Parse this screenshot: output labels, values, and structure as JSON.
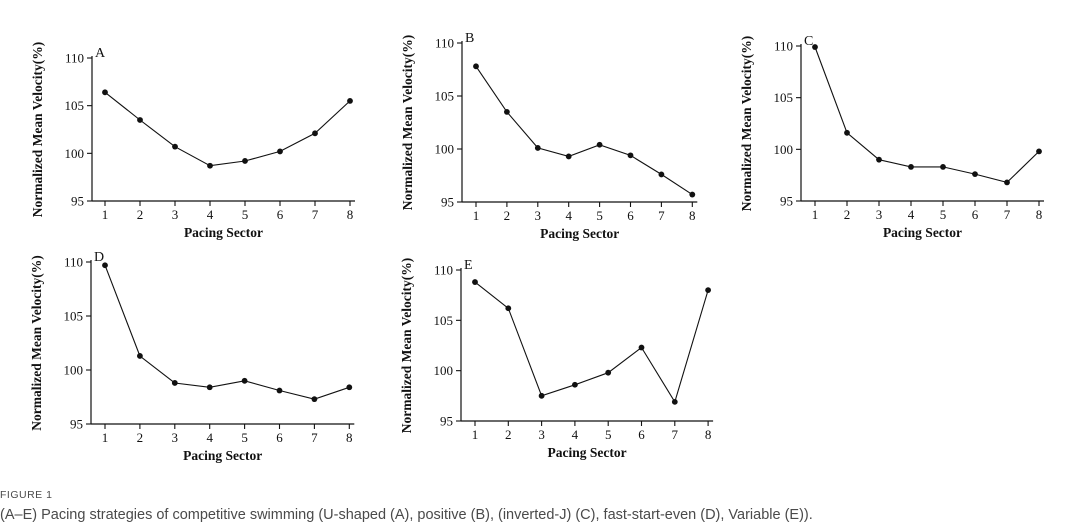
{
  "figure": {
    "label": "FIGURE 1",
    "caption": "(A–E) Pacing strategies of competitive swimming (U-shaped (A), positive (B), (inverted-J) (C), fast-start-even (D), Variable (E))."
  },
  "chart_data": [
    {
      "type": "line",
      "panel": "A",
      "xlabel": "Pacing Sector",
      "ylabel": "Normalized Mean Velocity(%)",
      "x": [
        1,
        2,
        3,
        4,
        5,
        6,
        7,
        8
      ],
      "series": [
        {
          "values": [
            106.4,
            103.5,
            100.7,
            98.7,
            99.2,
            100.2,
            102.1,
            105.5
          ]
        }
      ],
      "xticks": [
        "1",
        "2",
        "3",
        "4",
        "5",
        "6",
        "7",
        "8"
      ],
      "yticks": [
        "95",
        "100",
        "105",
        "110"
      ],
      "xlim": [
        0.5,
        8.3
      ],
      "ylim": [
        95,
        110
      ],
      "grid": false
    },
    {
      "type": "line",
      "panel": "B",
      "xlabel": "Pacing Sector",
      "ylabel": "Normalized Mean Velocity(%)",
      "x": [
        1,
        2,
        3,
        4,
        5,
        6,
        7,
        8
      ],
      "series": [
        {
          "values": [
            107.8,
            103.5,
            100.1,
            99.3,
            100.4,
            99.4,
            97.6,
            95.7
          ]
        }
      ],
      "xticks": [
        "1",
        "2",
        "3",
        "4",
        "5",
        "6",
        "7",
        "8"
      ],
      "yticks": [
        "95",
        "100",
        "105",
        "110"
      ],
      "xlim": [
        0.5,
        8.3
      ],
      "ylim": [
        95,
        110
      ],
      "grid": false
    },
    {
      "type": "line",
      "panel": "C",
      "xlabel": "Pacing Sector",
      "ylabel": "Normalized Mean Velocity(%)",
      "x": [
        1,
        2,
        3,
        4,
        5,
        6,
        7,
        8
      ],
      "series": [
        {
          "values": [
            109.9,
            101.6,
            99.0,
            98.3,
            98.3,
            97.6,
            96.8,
            99.8
          ]
        }
      ],
      "xticks": [
        "1",
        "2",
        "3",
        "4",
        "5",
        "6",
        "7",
        "8"
      ],
      "yticks": [
        "95",
        "100",
        "105",
        "110"
      ],
      "xlim": [
        0.5,
        8.3
      ],
      "ylim": [
        95,
        110
      ],
      "grid": false
    },
    {
      "type": "line",
      "panel": "D",
      "xlabel": "Pacing Sector",
      "ylabel": "Normalized Mean Velocity(%)",
      "x": [
        1,
        2,
        3,
        4,
        5,
        6,
        7,
        8
      ],
      "series": [
        {
          "values": [
            109.7,
            101.3,
            98.8,
            98.4,
            99.0,
            98.1,
            97.3,
            98.4
          ]
        }
      ],
      "xticks": [
        "1",
        "2",
        "3",
        "4",
        "5",
        "6",
        "7",
        "8"
      ],
      "yticks": [
        "95",
        "100",
        "105",
        "110"
      ],
      "xlim": [
        0.5,
        8.3
      ],
      "ylim": [
        95,
        110
      ],
      "grid": false
    },
    {
      "type": "line",
      "panel": "E",
      "xlabel": "Pacing Sector",
      "ylabel": "Normalized Mean Velocity(%)",
      "x": [
        1,
        2,
        3,
        4,
        5,
        6,
        7,
        8
      ],
      "series": [
        {
          "values": [
            108.8,
            106.2,
            97.5,
            98.6,
            99.8,
            102.3,
            96.9,
            108.0
          ]
        }
      ],
      "xticks": [
        "1",
        "2",
        "3",
        "4",
        "5",
        "6",
        "7",
        "8"
      ],
      "yticks": [
        "95",
        "100",
        "105",
        "110"
      ],
      "xlim": [
        0.5,
        8.3
      ],
      "ylim": [
        95,
        110
      ],
      "grid": false
    }
  ]
}
